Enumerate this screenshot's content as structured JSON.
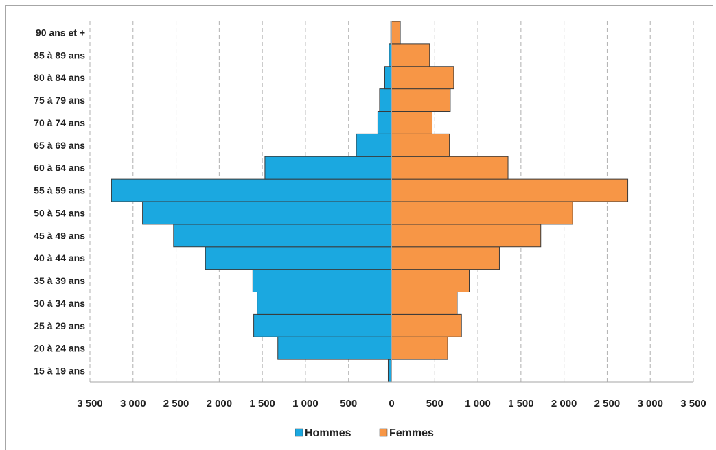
{
  "chart_data": {
    "type": "bar",
    "orientation": "horizontal-pyramid",
    "categories": [
      "15 à 19 ans",
      "20 à 24 ans",
      "25 à 29 ans",
      "30 à 34 ans",
      "35 à 39 ans",
      "40 à 44 ans",
      "45 à 49 ans",
      "50 à 54 ans",
      "55 à 59 ans",
      "60 à 64 ans",
      "65 à 69 ans",
      "70 à 74 ans",
      "75 à 79 ans",
      "80 à 84 ans",
      "85 à 89 ans",
      "90 ans et +"
    ],
    "series": [
      {
        "name": "Hommes",
        "color": "#1ba8e0",
        "side": "left",
        "values": [
          40,
          1320,
          1600,
          1560,
          1610,
          2160,
          2530,
          2890,
          3250,
          1470,
          410,
          160,
          140,
          80,
          30,
          10
        ]
      },
      {
        "name": "Femmes",
        "color": "#f79646",
        "side": "right",
        "values": [
          0,
          650,
          810,
          760,
          900,
          1250,
          1730,
          2100,
          2740,
          1350,
          670,
          470,
          680,
          720,
          440,
          100
        ]
      }
    ],
    "xlim": [
      -3500,
      3500
    ],
    "ticks": [
      -3500,
      -3000,
      -2500,
      -2000,
      -1500,
      -1000,
      -500,
      0,
      500,
      1000,
      1500,
      2000,
      2500,
      3000,
      3500
    ],
    "tick_labels": [
      "3 500",
      "3 000",
      "2 500",
      "2 000",
      "1 500",
      "1 000",
      "500",
      "0",
      "500",
      "1 000",
      "1 500",
      "2 000",
      "2 500",
      "3 000",
      "3 500"
    ],
    "grid": "vertical dashed",
    "legend_position": "bottom"
  }
}
